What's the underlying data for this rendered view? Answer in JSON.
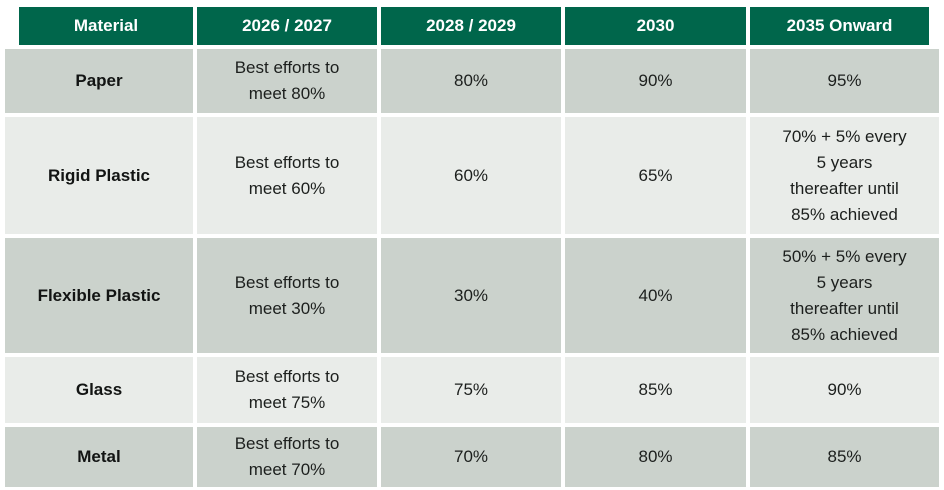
{
  "colors": {
    "header_bg": "#00664b",
    "header_text": "#ffffff",
    "row_dark": "#cbd2cc",
    "row_light": "#e9ece9",
    "body_text": "#1c1f1d"
  },
  "table": {
    "columns": [
      "Material",
      "2026 / 2027",
      "2028 / 2029",
      "2030",
      "2035 Onward"
    ],
    "rows": [
      {
        "material": "Paper",
        "cells": [
          "Best efforts to\nmeet 80%",
          "80%",
          "90%",
          "95%"
        ]
      },
      {
        "material": "Rigid Plastic",
        "cells": [
          "Best efforts to\nmeet 60%",
          "60%",
          "65%",
          "70% + 5% every\n5 years\nthereafter until\n85% achieved"
        ]
      },
      {
        "material": "Flexible Plastic",
        "cells": [
          "Best efforts to\nmeet 30%",
          "30%",
          "40%",
          "50% + 5% every\n5 years\nthereafter until\n85% achieved"
        ]
      },
      {
        "material": "Glass",
        "cells": [
          "Best efforts to\nmeet 75%",
          "75%",
          "85%",
          "90%"
        ]
      },
      {
        "material": "Metal",
        "cells": [
          "Best efforts to\nmeet 70%",
          "70%",
          "80%",
          "85%"
        ]
      }
    ]
  }
}
